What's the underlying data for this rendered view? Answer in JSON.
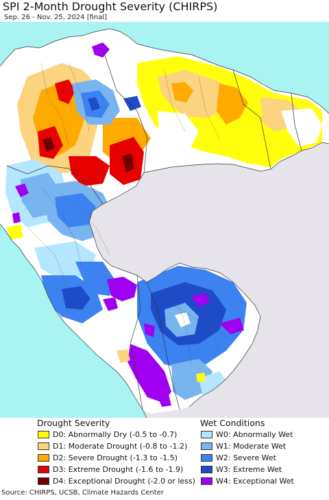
{
  "title": "SPI 2-Month Drought Severity (CHIRPS)",
  "subtitle": "Sep. 26 - Nov. 25, 2024 [final]",
  "source": "Source: CHIRPS, UCSB, Climate Hazards Center",
  "colors": {
    "ocean": "#a9f3f3",
    "outside": "#e6e3ea",
    "neutral": "#ffffff",
    "border": "#333333"
  },
  "legend": {
    "drought_title": "Drought Severity",
    "wet_title": "Wet Conditions",
    "drought": [
      {
        "label": "D0: Abnormally Dry (-0.5 to -0.7)",
        "color": "#ffff00"
      },
      {
        "label": "D1: Moderate Drought (-0.8 to -1.2)",
        "color": "#fcd37f"
      },
      {
        "label": "D2: Severe Drought (-1.3 to -1.5)",
        "color": "#ffaa00"
      },
      {
        "label": "D3: Extreme Drought (-1.6 to -1.9)",
        "color": "#e60000"
      },
      {
        "label": "D4: Exceptional Drought (-2.0 or less)",
        "color": "#730000"
      }
    ],
    "wet": [
      {
        "label": "W0: Abnormally Wet",
        "color": "#b4e6ff"
      },
      {
        "label": "W1: Moderate Wet",
        "color": "#78b4f0"
      },
      {
        "label": "W2: Severe Wet",
        "color": "#3c82f0"
      },
      {
        "label": "W3: Extreme Wet",
        "color": "#1e4bc8"
      },
      {
        "label": "W4: Exceptional Wet",
        "color": "#a000f0"
      }
    ]
  }
}
